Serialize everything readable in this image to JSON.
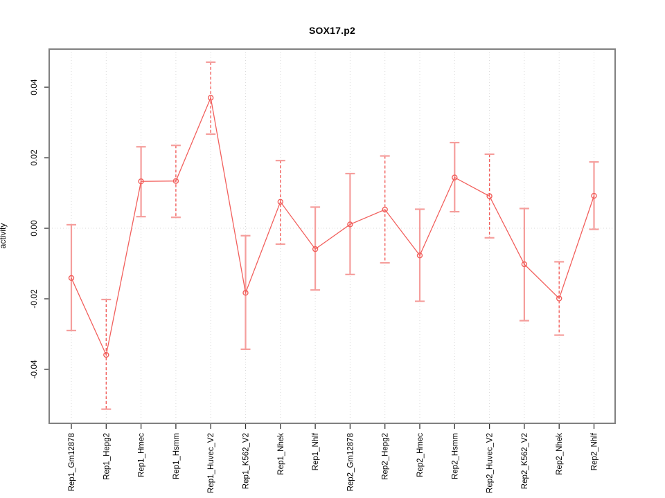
{
  "chart_data": {
    "type": "line",
    "title": "SOX17.p2",
    "ylabel": "activity",
    "xlabel": "",
    "legend": "none",
    "grid": {
      "vertical_dotted_at_each_category": true,
      "horizontal_dotted_zero_line": true
    },
    "categories": [
      "Rep1_Gm12878",
      "Rep1_Hepg2",
      "Rep1_Hmec",
      "Rep1_Hsmm",
      "Rep1_Huvec_V2",
      "Rep1_K562_V2",
      "Rep1_Nhek",
      "Rep1_Nhlf",
      "Rep2_Gm12878",
      "Rep2_Hepg2",
      "Rep2_Hmec",
      "Rep2_Hsmm",
      "Rep2_Huvec_V2",
      "Rep2_K562_V2",
      "Rep2_Nhek",
      "Rep2_Nhlf"
    ],
    "series": [
      {
        "name": "activity",
        "marker": "open-circle",
        "values": [
          -0.0141,
          -0.0359,
          0.0133,
          0.0134,
          0.037,
          -0.0183,
          0.0075,
          -0.0059,
          0.0011,
          0.0053,
          -0.0077,
          0.0144,
          0.0091,
          -0.0102,
          -0.0199,
          0.0092
        ],
        "upper": [
          0.001,
          -0.0202,
          0.0231,
          0.0235,
          0.0471,
          -0.0021,
          0.0192,
          0.006,
          0.0155,
          0.0205,
          0.0054,
          0.0243,
          0.021,
          0.0056,
          -0.0095,
          0.0188
        ],
        "lower": [
          -0.029,
          -0.0513,
          0.0033,
          0.0031,
          0.0267,
          -0.0343,
          -0.0045,
          -0.0175,
          -0.0131,
          -0.0098,
          -0.0207,
          0.0047,
          -0.0027,
          -0.0262,
          -0.0303,
          -0.0003
        ],
        "stem_styles": [
          "solid",
          "dashed",
          "solid",
          "dashed",
          "dashed",
          "solid",
          "dashed",
          "solid",
          "solid",
          "dashed",
          "solid",
          "solid",
          "dashed",
          "solid",
          "dashed",
          "solid"
        ]
      }
    ],
    "yticks": [
      -0.04,
      -0.02,
      0.0,
      0.02,
      0.04
    ],
    "ytick_labels": [
      "-0.04",
      "-0.02",
      "0.00",
      "0.02",
      "0.04"
    ],
    "ylim": [
      -0.0553,
      0.0508
    ],
    "colors": {
      "series": "#f25f5c",
      "stem_light": "#f59e9c",
      "grid": "#d9d9d9",
      "frame": "#808080",
      "tick": "#333333",
      "text": "#000000",
      "background": "#ffffff"
    }
  }
}
